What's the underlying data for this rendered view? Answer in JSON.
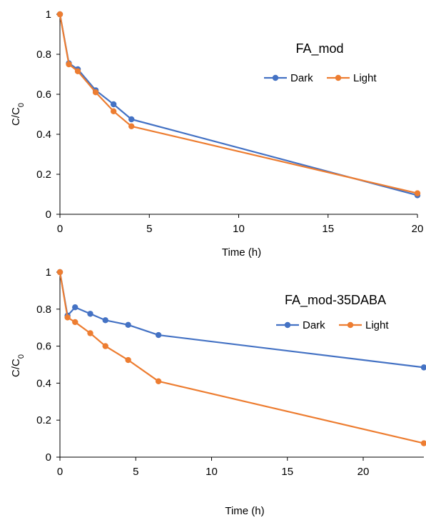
{
  "chart_data": [
    {
      "type": "line",
      "title": "FA_mod",
      "xlabel": "Time (h)",
      "ylabel": "C/C0",
      "xlim": [
        0,
        20
      ],
      "ylim": [
        0,
        1
      ],
      "xticks": [
        "0",
        "5",
        "10",
        "15",
        "20"
      ],
      "yticks": [
        "0",
        "0.2",
        "0.4",
        "0.6",
        "0.8",
        "1"
      ],
      "grid": false,
      "legend_position": "top-right",
      "series": [
        {
          "name": "Dark",
          "color": "#4472C4",
          "x": [
            0,
            0.5,
            1,
            2,
            3,
            4,
            20
          ],
          "y": [
            1.0,
            0.755,
            0.725,
            0.62,
            0.55,
            0.475,
            0.095
          ]
        },
        {
          "name": "Light",
          "color": "#ED7D31",
          "x": [
            0,
            0.5,
            1,
            2,
            3,
            4,
            20
          ],
          "y": [
            1.0,
            0.75,
            0.715,
            0.61,
            0.515,
            0.44,
            0.105
          ]
        }
      ]
    },
    {
      "type": "line",
      "title": "FA_mod-35DABA",
      "xlabel": "Time (h)",
      "ylabel": "C/C0",
      "xlim": [
        0,
        24
      ],
      "ylim": [
        0,
        1
      ],
      "xticks": [
        "0",
        "5",
        "10",
        "15",
        "20"
      ],
      "yticks": [
        "0",
        "0.2",
        "0.4",
        "0.6",
        "0.8",
        "1"
      ],
      "grid": false,
      "legend_position": "top-right",
      "series": [
        {
          "name": "Dark",
          "color": "#4472C4",
          "x": [
            0,
            0.5,
            1,
            2,
            3,
            4.5,
            6.5,
            24
          ],
          "y": [
            1.0,
            0.765,
            0.81,
            0.775,
            0.74,
            0.715,
            0.66,
            0.485
          ]
        },
        {
          "name": "Light",
          "color": "#ED7D31",
          "x": [
            0,
            0.5,
            1,
            2,
            3,
            4.5,
            6.5,
            24
          ],
          "y": [
            1.0,
            0.755,
            0.73,
            0.67,
            0.6,
            0.525,
            0.41,
            0.075
          ]
        }
      ]
    }
  ]
}
